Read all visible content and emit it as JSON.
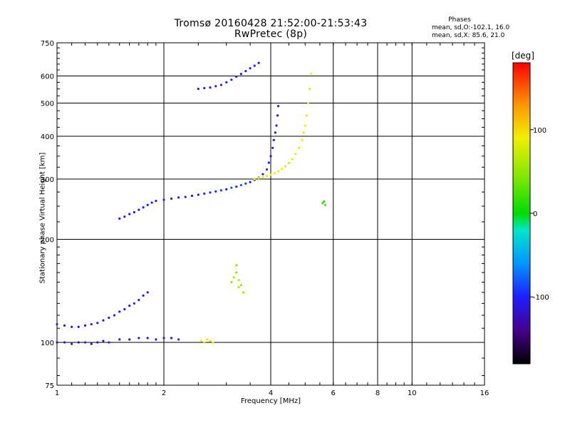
{
  "chart_data": {
    "type": "scatter",
    "title": "Tromsø 20160428 21:52:00-21:53:43",
    "subtitle": "RwPretec (8p)",
    "xlabel": "Frequency [MHz]",
    "ylabel": "Stationary phase Virtual Height [km]",
    "x_scale": "log",
    "y_scale": "log",
    "xlim": [
      1,
      16
    ],
    "ylim": [
      75,
      750
    ],
    "x_ticks": [
      1,
      2,
      4,
      6,
      8,
      10,
      16
    ],
    "y_ticks": [
      75,
      100,
      200,
      300,
      400,
      500,
      600,
      750
    ],
    "grid": true,
    "phase_stats": {
      "title": "Phases",
      "line1": "mean, sd,O:-102.1, 16.0",
      "line2": "mean, sd,X:  85.6, 21.0"
    },
    "colorbar": {
      "unit": "[deg]",
      "ticks": [
        "100",
        "0",
        "-100"
      ],
      "tick_values": [
        100,
        0,
        -100
      ],
      "range": [
        -180,
        180
      ]
    },
    "series": [
      {
        "values": [
          {
            "x": 1.0,
            "y": 100,
            "phase": -120
          },
          {
            "x": 1.05,
            "y": 100,
            "phase": -115
          },
          {
            "x": 1.1,
            "y": 99,
            "phase": -110
          },
          {
            "x": 1.15,
            "y": 100,
            "phase": -118
          },
          {
            "x": 1.2,
            "y": 100,
            "phase": -105
          },
          {
            "x": 1.25,
            "y": 99,
            "phase": -112
          },
          {
            "x": 1.3,
            "y": 100,
            "phase": -108
          },
          {
            "x": 1.35,
            "y": 101,
            "phase": -115
          },
          {
            "x": 1.4,
            "y": 100,
            "phase": -100
          },
          {
            "x": 1.5,
            "y": 102,
            "phase": -110
          },
          {
            "x": 1.6,
            "y": 102,
            "phase": -118
          },
          {
            "x": 1.7,
            "y": 103,
            "phase": -105
          },
          {
            "x": 1.8,
            "y": 103,
            "phase": -112
          },
          {
            "x": 1.9,
            "y": 102,
            "phase": -108
          },
          {
            "x": 2.0,
            "y": 103,
            "phase": -102
          },
          {
            "x": 2.1,
            "y": 103,
            "phase": -110
          },
          {
            "x": 2.2,
            "y": 102,
            "phase": -100
          }
        ]
      },
      {
        "values": [
          {
            "x": 1.0,
            "y": 113,
            "phase": -110
          },
          {
            "x": 1.05,
            "y": 112,
            "phase": -112
          },
          {
            "x": 1.1,
            "y": 111,
            "phase": -108
          },
          {
            "x": 1.15,
            "y": 111,
            "phase": -115
          },
          {
            "x": 1.2,
            "y": 112,
            "phase": -105
          },
          {
            "x": 1.25,
            "y": 113,
            "phase": -110
          },
          {
            "x": 1.3,
            "y": 114,
            "phase": -100
          },
          {
            "x": 1.35,
            "y": 116,
            "phase": -108
          },
          {
            "x": 1.4,
            "y": 118,
            "phase": -112
          },
          {
            "x": 1.45,
            "y": 120,
            "phase": -100
          },
          {
            "x": 1.5,
            "y": 123,
            "phase": -110
          },
          {
            "x": 1.55,
            "y": 125,
            "phase": -105
          },
          {
            "x": 1.6,
            "y": 128,
            "phase": -115
          },
          {
            "x": 1.65,
            "y": 130,
            "phase": -100
          },
          {
            "x": 1.7,
            "y": 133,
            "phase": -108
          },
          {
            "x": 1.75,
            "y": 137,
            "phase": -112
          },
          {
            "x": 1.8,
            "y": 140,
            "phase": -105
          }
        ]
      },
      {
        "values": [
          {
            "x": 1.5,
            "y": 230,
            "phase": -115
          },
          {
            "x": 1.55,
            "y": 233,
            "phase": -110
          },
          {
            "x": 1.6,
            "y": 237,
            "phase": -108
          },
          {
            "x": 1.65,
            "y": 240,
            "phase": -112
          },
          {
            "x": 1.7,
            "y": 244,
            "phase": -105
          },
          {
            "x": 1.75,
            "y": 248,
            "phase": -110
          },
          {
            "x": 1.8,
            "y": 252,
            "phase": -100
          },
          {
            "x": 1.85,
            "y": 256,
            "phase": -108
          },
          {
            "x": 1.9,
            "y": 259,
            "phase": -112
          },
          {
            "x": 2.0,
            "y": 261,
            "phase": -105
          },
          {
            "x": 2.1,
            "y": 263,
            "phase": -110
          },
          {
            "x": 2.2,
            "y": 265,
            "phase": -100
          },
          {
            "x": 2.3,
            "y": 266,
            "phase": -108
          },
          {
            "x": 2.4,
            "y": 268,
            "phase": -112
          },
          {
            "x": 2.5,
            "y": 270,
            "phase": -105
          },
          {
            "x": 2.6,
            "y": 272,
            "phase": -110
          },
          {
            "x": 2.7,
            "y": 274,
            "phase": -95
          },
          {
            "x": 2.8,
            "y": 276,
            "phase": -100
          },
          {
            "x": 2.9,
            "y": 278,
            "phase": -90
          },
          {
            "x": 3.0,
            "y": 280,
            "phase": -105
          },
          {
            "x": 3.1,
            "y": 283,
            "phase": -85
          },
          {
            "x": 3.2,
            "y": 285,
            "phase": -95
          },
          {
            "x": 3.3,
            "y": 288,
            "phase": -80
          },
          {
            "x": 3.4,
            "y": 291,
            "phase": -90
          },
          {
            "x": 3.5,
            "y": 294,
            "phase": -100
          },
          {
            "x": 3.6,
            "y": 298,
            "phase": -85
          },
          {
            "x": 3.7,
            "y": 303,
            "phase": -95
          },
          {
            "x": 3.8,
            "y": 310,
            "phase": -100
          },
          {
            "x": 3.9,
            "y": 320,
            "phase": -110
          },
          {
            "x": 3.95,
            "y": 335,
            "phase": -105
          },
          {
            "x": 4.0,
            "y": 350,
            "phase": -112
          },
          {
            "x": 4.05,
            "y": 370,
            "phase": -108
          },
          {
            "x": 4.08,
            "y": 390,
            "phase": -115
          },
          {
            "x": 4.12,
            "y": 410,
            "phase": -110
          },
          {
            "x": 4.15,
            "y": 430,
            "phase": -105
          },
          {
            "x": 4.18,
            "y": 460,
            "phase": -112
          },
          {
            "x": 4.2,
            "y": 490,
            "phase": -108
          }
        ]
      },
      {
        "values": [
          {
            "x": 2.5,
            "y": 550,
            "phase": -110
          },
          {
            "x": 2.6,
            "y": 553,
            "phase": -105
          },
          {
            "x": 2.7,
            "y": 555,
            "phase": -112
          },
          {
            "x": 2.8,
            "y": 560,
            "phase": -108
          },
          {
            "x": 2.9,
            "y": 565,
            "phase": -110
          },
          {
            "x": 3.0,
            "y": 575,
            "phase": -100
          },
          {
            "x": 3.1,
            "y": 585,
            "phase": -105
          },
          {
            "x": 3.2,
            "y": 597,
            "phase": -110
          },
          {
            "x": 3.3,
            "y": 608,
            "phase": -108
          },
          {
            "x": 3.4,
            "y": 620,
            "phase": -112
          },
          {
            "x": 3.5,
            "y": 632,
            "phase": -105
          },
          {
            "x": 3.6,
            "y": 643,
            "phase": -100
          },
          {
            "x": 3.7,
            "y": 655,
            "phase": -110
          }
        ]
      },
      {
        "values": [
          {
            "x": 3.6,
            "y": 300,
            "phase": 90
          },
          {
            "x": 3.7,
            "y": 302,
            "phase": 85
          },
          {
            "x": 3.8,
            "y": 304,
            "phase": 95
          },
          {
            "x": 3.9,
            "y": 306,
            "phase": 80
          },
          {
            "x": 4.0,
            "y": 309,
            "phase": 88
          },
          {
            "x": 4.1,
            "y": 312,
            "phase": 92
          },
          {
            "x": 4.2,
            "y": 316,
            "phase": 85
          },
          {
            "x": 4.3,
            "y": 321,
            "phase": 90
          },
          {
            "x": 4.4,
            "y": 327,
            "phase": 95
          },
          {
            "x": 4.5,
            "y": 334,
            "phase": 82
          },
          {
            "x": 4.6,
            "y": 343,
            "phase": 88
          },
          {
            "x": 4.7,
            "y": 355,
            "phase": 92
          },
          {
            "x": 4.8,
            "y": 370,
            "phase": 85
          },
          {
            "x": 4.9,
            "y": 390,
            "phase": 90
          },
          {
            "x": 4.95,
            "y": 410,
            "phase": 95
          },
          {
            "x": 5.0,
            "y": 430,
            "phase": 88
          },
          {
            "x": 5.05,
            "y": 460,
            "phase": 92
          },
          {
            "x": 5.1,
            "y": 500,
            "phase": 85
          },
          {
            "x": 5.15,
            "y": 550,
            "phase": 80
          },
          {
            "x": 5.2,
            "y": 610,
            "phase": 90
          }
        ]
      },
      {
        "values": [
          {
            "x": 2.55,
            "y": 101,
            "phase": 90
          },
          {
            "x": 2.6,
            "y": 100,
            "phase": 85
          },
          {
            "x": 2.65,
            "y": 102,
            "phase": 95
          },
          {
            "x": 2.7,
            "y": 101,
            "phase": 80
          },
          {
            "x": 2.75,
            "y": 100,
            "phase": 88
          }
        ]
      },
      {
        "values": [
          {
            "x": 3.1,
            "y": 150,
            "phase": 55
          },
          {
            "x": 3.15,
            "y": 155,
            "phase": 60
          },
          {
            "x": 3.2,
            "y": 160,
            "phase": 50
          },
          {
            "x": 3.25,
            "y": 152,
            "phase": 65
          },
          {
            "x": 3.3,
            "y": 147,
            "phase": 58
          },
          {
            "x": 3.35,
            "y": 140,
            "phase": 62
          },
          {
            "x": 3.2,
            "y": 168,
            "phase": 52
          },
          {
            "x": 3.25,
            "y": 145,
            "phase": 60
          }
        ]
      },
      {
        "values": [
          {
            "x": 5.6,
            "y": 255,
            "phase": 20
          },
          {
            "x": 5.65,
            "y": 258,
            "phase": 15
          },
          {
            "x": 5.7,
            "y": 252,
            "phase": 25
          }
        ]
      }
    ]
  }
}
